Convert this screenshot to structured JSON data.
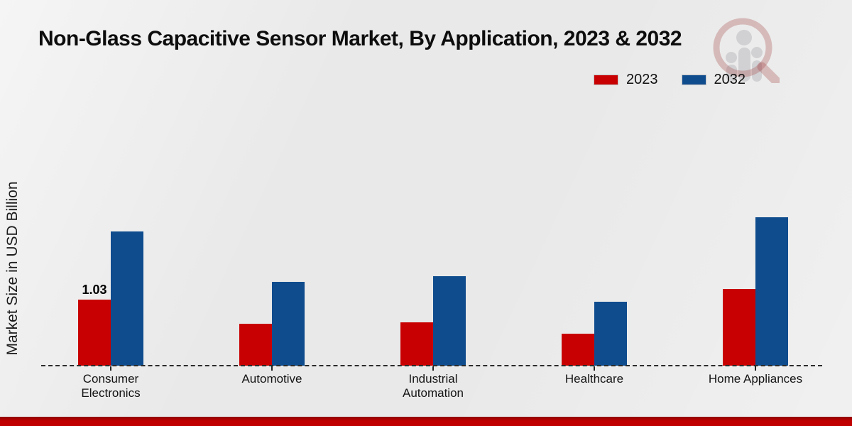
{
  "title": "Non-Glass Capacitive Sensor Market, By Application, 2023 & 2032",
  "ylabel": "Market Size in USD Billion",
  "legend": {
    "items": [
      {
        "label": "2023",
        "color": "#c80001"
      },
      {
        "label": "2032",
        "color": "#0f4c8e"
      }
    ]
  },
  "colors": {
    "series_2023": "#c80001",
    "series_2032": "#0f4c8e",
    "footer_accent": "#c00000",
    "baseline": "#2b2b2b",
    "background": "#e9e9e9"
  },
  "watermark": {
    "icon": "magnifier-bars-logo"
  },
  "chart_data": {
    "type": "bar",
    "title": "Non-Glass Capacitive Sensor Market, By Application, 2023 & 2032",
    "categories": [
      "Consumer Electronics",
      "Automotive",
      "Industrial Automation",
      "Healthcare",
      "Home Appliances"
    ],
    "series": [
      {
        "name": "2023",
        "color": "#c80001",
        "values": [
          1.03,
          0.65,
          0.68,
          0.5,
          1.2
        ]
      },
      {
        "name": "2032",
        "color": "#0f4c8e",
        "values": [
          2.09,
          1.31,
          1.39,
          1.0,
          2.31
        ]
      }
    ],
    "data_labels": [
      {
        "category_index": 0,
        "series_index": 0,
        "text": "1.03"
      }
    ],
    "xlabel": "",
    "ylabel": "Market Size in USD Billion",
    "ylim": [
      0,
      2.5
    ],
    "grid": false,
    "legend_position": "top-right",
    "baseline_style": "dashed",
    "y_axis_ticks_visible": false
  }
}
